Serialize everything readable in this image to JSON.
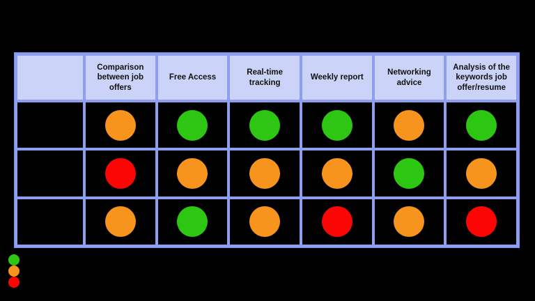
{
  "colors": {
    "green": "#2dc713",
    "orange": "#f7941d",
    "red": "#fb0505",
    "grid_border": "#8c9ff1",
    "header_bg": "#ccd3f8",
    "header_text": "#111111",
    "page_bg": "#000000"
  },
  "chart_data": {
    "type": "table",
    "title": "",
    "columns": [
      "",
      "Comparison between job offers",
      "Free Access",
      "Real-time tracking",
      "Weekly report",
      "Networking advice",
      "Analysis of the keywords job offer/resume"
    ],
    "rows": [
      {
        "label": "",
        "cells": [
          "orange",
          "green",
          "green",
          "green",
          "orange",
          "green"
        ]
      },
      {
        "label": "",
        "cells": [
          "red",
          "orange",
          "orange",
          "orange",
          "green",
          "orange"
        ]
      },
      {
        "label": "",
        "cells": [
          "orange",
          "green",
          "orange",
          "red",
          "orange",
          "red"
        ]
      }
    ],
    "legend": {
      "position": "bottom-left",
      "dots": [
        "green",
        "orange",
        "red"
      ]
    }
  }
}
